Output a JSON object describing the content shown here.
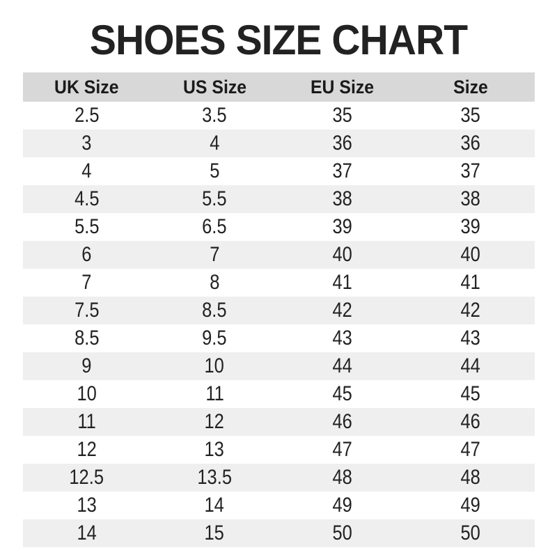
{
  "title": "SHOES SIZE CHART",
  "colors": {
    "page_bg": "#ffffff",
    "title_color": "#222222",
    "header_bg": "#d8d8d8",
    "row_bg": "#ffffff",
    "row_alt_bg": "#efefef",
    "text_color": "#222222"
  },
  "chart_data": {
    "type": "table",
    "title": "SHOES SIZE CHART",
    "columns": [
      "UK Size",
      "US Size",
      "EU Size",
      "Size"
    ],
    "rows": [
      [
        "2.5",
        "3.5",
        "35",
        "35"
      ],
      [
        "3",
        "4",
        "36",
        "36"
      ],
      [
        "4",
        "5",
        "37",
        "37"
      ],
      [
        "4.5",
        "5.5",
        "38",
        "38"
      ],
      [
        "5.5",
        "6.5",
        "39",
        "39"
      ],
      [
        "6",
        "7",
        "40",
        "40"
      ],
      [
        "7",
        "8",
        "41",
        "41"
      ],
      [
        "7.5",
        "8.5",
        "42",
        "42"
      ],
      [
        "8.5",
        "9.5",
        "43",
        "43"
      ],
      [
        "9",
        "10",
        "44",
        "44"
      ],
      [
        "10",
        "11",
        "45",
        "45"
      ],
      [
        "11",
        "12",
        "46",
        "46"
      ],
      [
        "12",
        "13",
        "47",
        "47"
      ],
      [
        "12.5",
        "13.5",
        "48",
        "48"
      ],
      [
        "13",
        "14",
        "49",
        "49"
      ],
      [
        "14",
        "15",
        "50",
        "50"
      ]
    ],
    "layout": {
      "alternating_row_shading": true,
      "grid": false,
      "text_align": "center"
    }
  }
}
